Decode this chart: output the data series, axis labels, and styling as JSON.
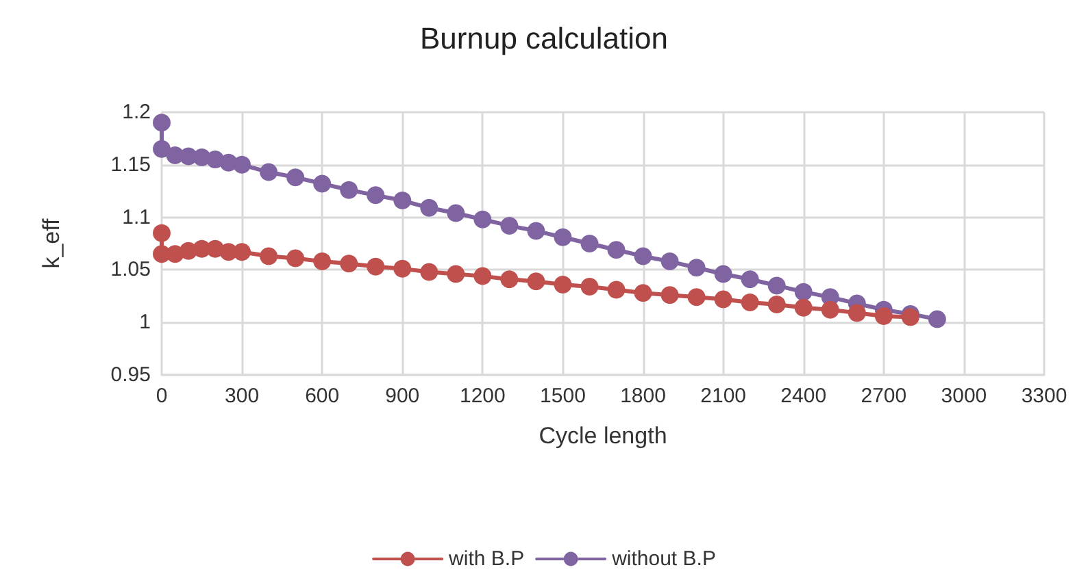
{
  "chart_data": {
    "type": "line",
    "title": "Burnup calculation",
    "xlabel": "Cycle length",
    "ylabel": "k_eff",
    "series": [
      {
        "name": "with B.P",
        "color": "#c0504d",
        "x": [
          0,
          0,
          50,
          100,
          150,
          200,
          250,
          300,
          400,
          500,
          600,
          700,
          800,
          900,
          1000,
          1100,
          1200,
          1300,
          1400,
          1500,
          1600,
          1700,
          1800,
          1900,
          2000,
          2100,
          2200,
          2300,
          2400,
          2500,
          2600,
          2700,
          2800
        ],
        "values": [
          1.085,
          1.065,
          1.065,
          1.068,
          1.07,
          1.07,
          1.067,
          1.067,
          1.063,
          1.061,
          1.058,
          1.056,
          1.053,
          1.051,
          1.048,
          1.046,
          1.044,
          1.041,
          1.039,
          1.036,
          1.034,
          1.031,
          1.028,
          1.026,
          1.024,
          1.022,
          1.019,
          1.017,
          1.014,
          1.012,
          1.009,
          1.006,
          1.005
        ]
      },
      {
        "name": "without B.P",
        "color": "#8064a2",
        "x": [
          0,
          0,
          50,
          100,
          150,
          200,
          250,
          300,
          400,
          500,
          600,
          700,
          800,
          900,
          1000,
          1100,
          1200,
          1300,
          1400,
          1500,
          1600,
          1700,
          1800,
          1900,
          2000,
          2100,
          2200,
          2300,
          2400,
          2500,
          2600,
          2700,
          2800,
          2900
        ],
        "values": [
          1.19,
          1.165,
          1.159,
          1.158,
          1.157,
          1.155,
          1.152,
          1.15,
          1.143,
          1.138,
          1.132,
          1.126,
          1.121,
          1.116,
          1.109,
          1.104,
          1.098,
          1.092,
          1.087,
          1.081,
          1.075,
          1.069,
          1.063,
          1.058,
          1.052,
          1.046,
          1.041,
          1.035,
          1.029,
          1.024,
          1.018,
          1.012,
          1.008,
          1.003
        ]
      }
    ],
    "xlim": [
      0,
      3300
    ],
    "xticks": [
      0,
      300,
      600,
      900,
      1200,
      1500,
      1800,
      2100,
      2400,
      2700,
      3000,
      3300
    ],
    "ylim": [
      0.95,
      1.2
    ],
    "yticks": [
      0.95,
      1,
      1.05,
      1.1,
      1.15,
      1.2
    ],
    "grid": true,
    "legend": "bottom",
    "marker": "circle",
    "line_style": "solid"
  }
}
